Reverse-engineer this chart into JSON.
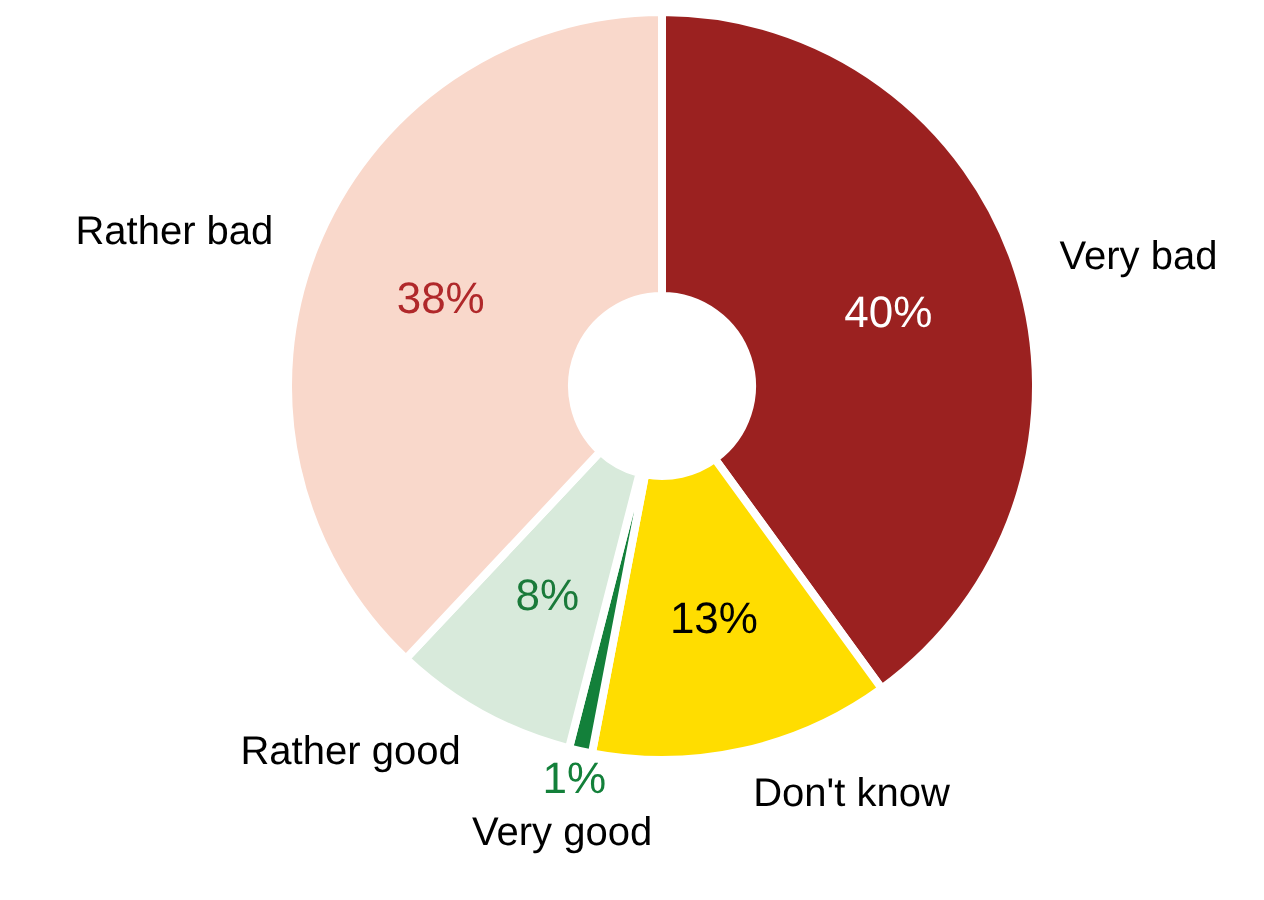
{
  "chart_data": {
    "type": "donut",
    "categories": [
      "Very bad",
      "Don't know",
      "Very good",
      "Rather good",
      "Rather bad"
    ],
    "values": [
      40,
      13,
      1,
      8,
      38
    ],
    "value_labels": [
      "40%",
      "13%",
      "1%",
      "8%",
      "38%"
    ],
    "colors": [
      "#9b2120",
      "#ffdd00",
      "#13803a",
      "#d8eadb",
      "#f9d8cb"
    ],
    "legend": false
  }
}
